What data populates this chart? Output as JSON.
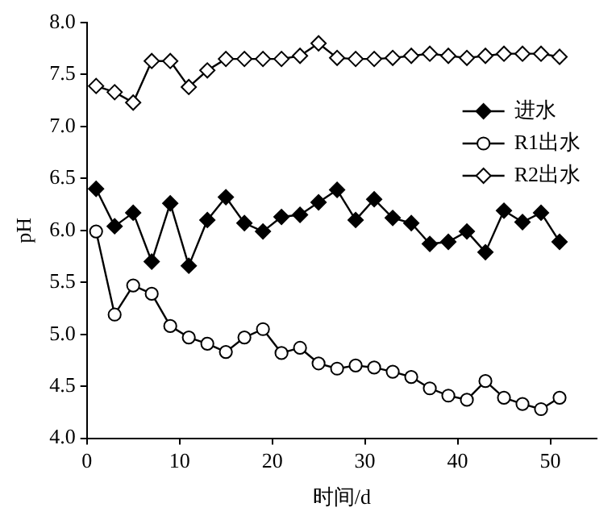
{
  "chart_data": {
    "type": "line",
    "xlabel": "时间/d",
    "ylabel": "pH",
    "x": [
      1,
      3,
      5,
      7,
      9,
      11,
      13,
      15,
      17,
      19,
      21,
      23,
      25,
      27,
      29,
      31,
      33,
      35,
      37,
      39,
      41,
      43,
      45,
      47,
      49,
      51
    ],
    "series": [
      {
        "name": "进水",
        "color": "#000000",
        "marker": "diamond",
        "values": [
          6.4,
          6.04,
          6.17,
          5.7,
          6.26,
          5.66,
          6.1,
          6.32,
          6.07,
          5.99,
          6.13,
          6.15,
          6.27,
          6.39,
          6.1,
          6.3,
          6.12,
          6.07,
          5.87,
          5.89,
          5.99,
          5.79,
          6.19,
          6.08,
          6.17,
          5.89
        ]
      },
      {
        "name": "R1出水",
        "color": "#000000",
        "marker": "circle",
        "values": [
          5.99,
          5.19,
          5.47,
          5.39,
          5.08,
          4.97,
          4.91,
          4.83,
          4.97,
          5.05,
          4.82,
          4.87,
          4.72,
          4.67,
          4.7,
          4.68,
          4.64,
          4.59,
          4.48,
          4.41,
          4.37,
          4.55,
          4.39,
          4.33,
          4.28,
          4.39
        ]
      },
      {
        "name": "R2出水",
        "color": "#000000",
        "marker": "diamond",
        "values": [
          7.39,
          7.33,
          7.23,
          7.63,
          7.63,
          7.38,
          7.54,
          7.65,
          7.65,
          7.65,
          7.65,
          7.68,
          7.8,
          7.66,
          7.65,
          7.65,
          7.66,
          7.68,
          7.7,
          7.68,
          7.66,
          7.68,
          7.7,
          7.7,
          7.7,
          7.67
        ]
      }
    ],
    "xlim": [
      0,
      55
    ],
    "xticks": [
      0,
      10,
      20,
      30,
      40,
      50
    ],
    "ylim": [
      4,
      8
    ],
    "yticks": [
      {
        "value": 4,
        "label": "4.0"
      },
      {
        "value": 4.5,
        "label": "4.5"
      },
      {
        "value": 5,
        "label": "5.0"
      },
      {
        "value": 5.5,
        "label": "5.5"
      },
      {
        "value": 6,
        "label": "6.0"
      },
      {
        "value": 6.5,
        "label": "6.5"
      },
      {
        "value": 7,
        "label": "7.0"
      },
      {
        "value": 7.5,
        "label": "7.5"
      },
      {
        "value": 8,
        "label": "8.0"
      }
    ],
    "grid": false,
    "legend": "right",
    "line_style": "solid"
  }
}
